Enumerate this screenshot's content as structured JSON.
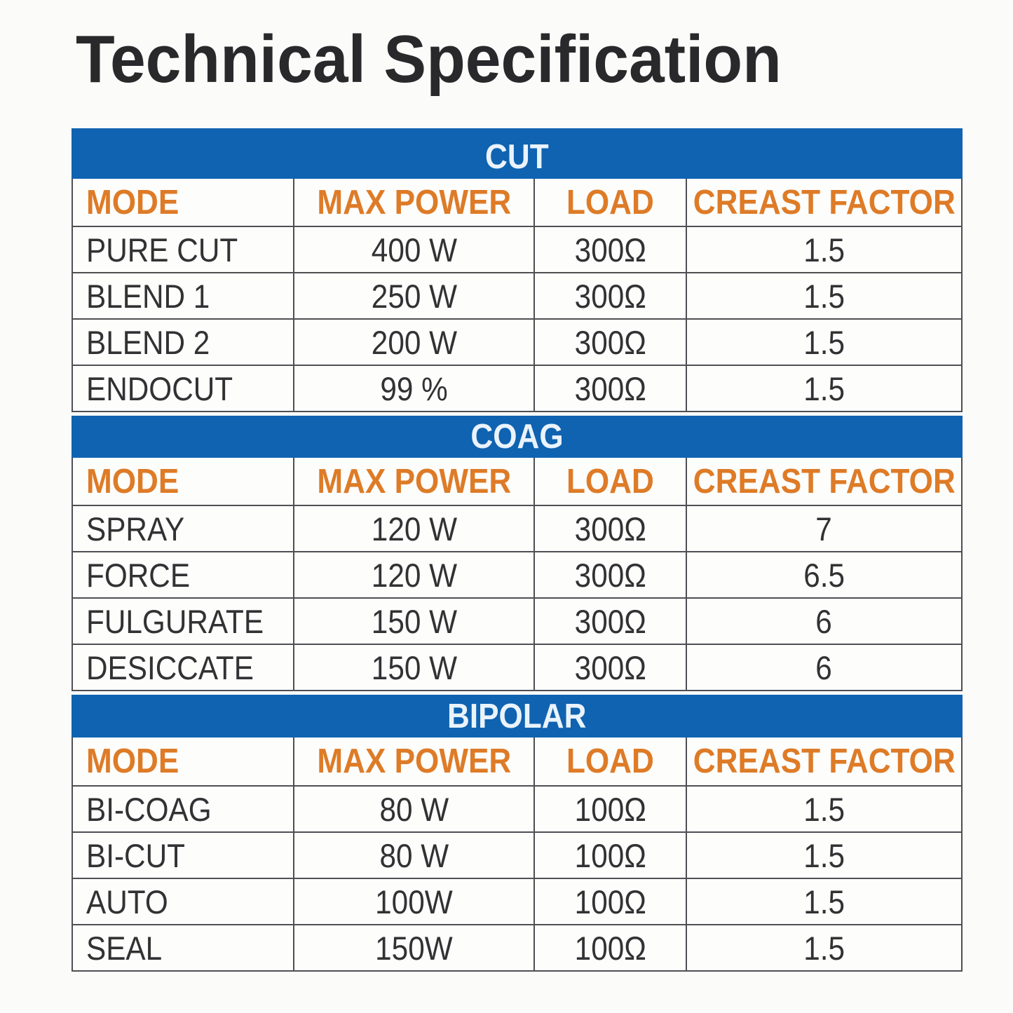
{
  "page": {
    "title": "Technical Specification"
  },
  "table": {
    "column_headers": [
      "MODE",
      "MAX POWER",
      "LOAD",
      "CREAST FACTOR"
    ],
    "sections": [
      {
        "name": "CUT",
        "rows": [
          [
            "PURE CUT",
            "400 W",
            "300Ω",
            "1.5"
          ],
          [
            "BLEND 1",
            "250 W",
            "300Ω",
            "1.5"
          ],
          [
            "BLEND 2",
            "200 W",
            "300Ω",
            "1.5"
          ],
          [
            "ENDOCUT",
            "99 %",
            "300Ω",
            "1.5"
          ]
        ]
      },
      {
        "name": "COAG",
        "rows": [
          [
            "SPRAY",
            "120 W",
            "300Ω",
            "7"
          ],
          [
            "FORCE",
            "120 W",
            "300Ω",
            "6.5"
          ],
          [
            "FULGURATE",
            "150 W",
            "300Ω",
            "6"
          ],
          [
            "DESICCATE",
            "150 W",
            "300Ω",
            "6"
          ]
        ]
      },
      {
        "name": "BIPOLAR",
        "rows": [
          [
            "BI-COAG",
            "80 W",
            "100Ω",
            "1.5"
          ],
          [
            "BI-CUT",
            "80 W",
            "100Ω",
            "1.5"
          ],
          [
            "AUTO",
            "100W",
            "100Ω",
            "1.5"
          ],
          [
            "SEAL",
            "150W",
            "100Ω",
            "1.5"
          ]
        ]
      }
    ]
  },
  "chart_data": {
    "type": "table",
    "title": "Technical Specification",
    "columns": [
      "MODE",
      "MAX POWER",
      "LOAD",
      "CREAST FACTOR"
    ],
    "groups": [
      {
        "group": "CUT",
        "rows": [
          [
            "PURE CUT",
            "400 W",
            "300Ω",
            "1.5"
          ],
          [
            "BLEND 1",
            "250 W",
            "300Ω",
            "1.5"
          ],
          [
            "BLEND 2",
            "200 W",
            "300Ω",
            "1.5"
          ],
          [
            "ENDOCUT",
            "99 %",
            "300Ω",
            "1.5"
          ]
        ]
      },
      {
        "group": "COAG",
        "rows": [
          [
            "SPRAY",
            "120 W",
            "300Ω",
            "7"
          ],
          [
            "FORCE",
            "120 W",
            "300Ω",
            "6.5"
          ],
          [
            "FULGURATE",
            "150 W",
            "300Ω",
            "6"
          ],
          [
            "DESICCATE",
            "150 W",
            "300Ω",
            "6"
          ]
        ]
      },
      {
        "group": "BIPOLAR",
        "rows": [
          [
            "BI-COAG",
            "80 W",
            "100Ω",
            "1.5"
          ],
          [
            "BI-CUT",
            "80 W",
            "100Ω",
            "1.5"
          ],
          [
            "AUTO",
            "100W",
            "100Ω",
            "1.5"
          ],
          [
            "SEAL",
            "150W",
            "100Ω",
            "1.5"
          ]
        ]
      }
    ]
  },
  "colors": {
    "band_blue": "#0f63b1",
    "band_text": "#eaf3fb",
    "header_orange": "#de7b27",
    "data_color": "#323234",
    "border_color": "#4e4f52",
    "title_color": "#29282b",
    "page_bg": "#fbfbfa",
    "cell_bg": "#fdfdfc"
  }
}
